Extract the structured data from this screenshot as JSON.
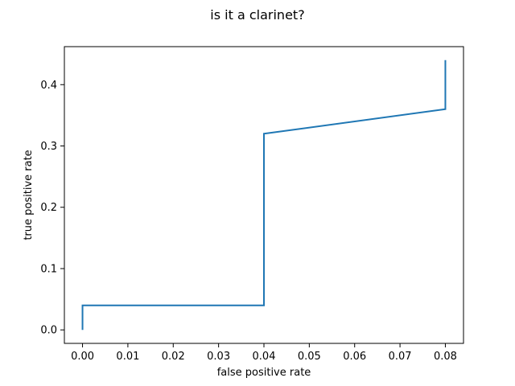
{
  "chart_data": {
    "type": "line",
    "title": "is it a clarinet?",
    "xlabel": "false positive rate",
    "ylabel": "true positive rate",
    "xlim": [
      -0.004,
      0.084
    ],
    "ylim": [
      -0.022,
      0.462
    ],
    "xticks": [
      0.0,
      0.01,
      0.02,
      0.03,
      0.04,
      0.05,
      0.06,
      0.07,
      0.08
    ],
    "xtick_labels": [
      "0.00",
      "0.01",
      "0.02",
      "0.03",
      "0.04",
      "0.05",
      "0.06",
      "0.07",
      "0.08"
    ],
    "yticks": [
      0.0,
      0.1,
      0.2,
      0.3,
      0.4
    ],
    "ytick_labels": [
      "0.0",
      "0.1",
      "0.2",
      "0.3",
      "0.4"
    ],
    "grid": false,
    "legend": "none",
    "series": [
      {
        "color": "#1f77b4",
        "x": [
          0.0,
          0.0,
          0.04,
          0.04,
          0.08,
          0.08
        ],
        "y": [
          0.0,
          0.04,
          0.04,
          0.32,
          0.36,
          0.44
        ]
      }
    ]
  }
}
